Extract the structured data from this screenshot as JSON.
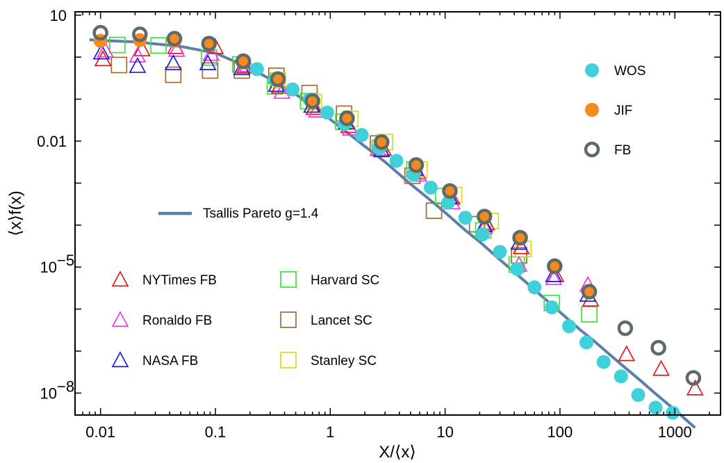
{
  "chart_data": {
    "type": "scatter",
    "xlabel": "X/⟨x⟩",
    "ylabel": "⟨x⟩f(x)",
    "xscale": "log",
    "yscale": "log",
    "xlim": [
      0.006,
      2500
    ],
    "ylim": [
      3e-09,
      12
    ],
    "x_ticks": [
      {
        "value": 0.01,
        "label": "0.01"
      },
      {
        "value": 0.1,
        "label": "0.1"
      },
      {
        "value": 1,
        "label": "1"
      },
      {
        "value": 10,
        "label": "10"
      },
      {
        "value": 100,
        "label": "100"
      },
      {
        "value": 1000,
        "label": "1000"
      }
    ],
    "y_ticks": [
      {
        "value": 10,
        "label": "10",
        "exp": ""
      },
      {
        "value": 0.01,
        "label": "0.01",
        "exp": ""
      },
      {
        "value": 1e-05,
        "label": "10",
        "exp": "−5"
      },
      {
        "value": 1e-08,
        "label": "10",
        "exp": "−8"
      }
    ],
    "curve": {
      "name": "Tsallis Pareto g=1.4",
      "color": "#5b7fad",
      "x": [
        0.008,
        0.01,
        0.02,
        0.05,
        0.1,
        0.2,
        0.3,
        0.5,
        0.7,
        1,
        1.5,
        2,
        3,
        5,
        7,
        10,
        15,
        20,
        30,
        50,
        70,
        100,
        150,
        200,
        300,
        500,
        700,
        1000,
        1500
      ],
      "y": [
        2.6,
        2.5,
        2.3,
        1.8,
        1.25,
        0.55,
        0.3,
        0.13,
        0.07,
        0.033,
        0.014,
        0.0075,
        0.0032,
        0.00095,
        0.00045,
        0.0002,
        7.5e-05,
        4e-05,
        1.5e-05,
        4.5e-06,
        2e-06,
        8.5e-07,
        3.2e-07,
        1.7e-07,
        6.5e-08,
        2e-08,
        9e-09,
        4e-09,
        1.5e-09
      ]
    },
    "series": [
      {
        "name": "WOS",
        "marker": "circle-filled",
        "color": "#3fd0da",
        "x": [
          0.23,
          0.33,
          0.47,
          0.66,
          0.94,
          1.33,
          1.88,
          2.66,
          3.77,
          5.3,
          7.5,
          10.6,
          15,
          21.2,
          30,
          42.4,
          60,
          85,
          120,
          170,
          240,
          340,
          480,
          680,
          960
        ],
        "y": [
          0.52,
          0.29,
          0.17,
          0.098,
          0.048,
          0.026,
          0.014,
          0.0068,
          0.0034,
          0.0016,
          0.00078,
          0.00034,
          0.00015,
          6e-05,
          2.3e-05,
          9e-06,
          3.3e-06,
          1.1e-06,
          3.9e-07,
          1.6e-07,
          5.5e-08,
          2.5e-08,
          9e-09,
          4.5e-09,
          3.4e-09
        ]
      },
      {
        "name": "JIF",
        "marker": "circle-filled",
        "color": "#f58a1f",
        "x": [
          0.01,
          0.022,
          0.044,
          0.088,
          0.175,
          0.35,
          0.7,
          1.4,
          2.8,
          5.6,
          11,
          22,
          45,
          90,
          180
        ],
        "y": [
          2.45,
          2.55,
          2.45,
          2.0,
          0.75,
          0.28,
          0.085,
          0.034,
          0.0088,
          0.0025,
          0.00062,
          0.00015,
          4.8e-05,
          9.9e-06,
          2.5e-06
        ]
      },
      {
        "name": "FB",
        "marker": "circle-open",
        "color": "#5d6b68",
        "x": [
          0.01,
          0.022,
          0.044,
          0.088,
          0.175,
          0.35,
          0.7,
          1.4,
          2.8,
          5.6,
          11,
          22,
          45,
          90,
          180,
          370,
          720,
          1450
        ],
        "y": [
          3.8,
          3.5,
          2.75,
          2.1,
          0.8,
          0.3,
          0.09,
          0.035,
          0.0095,
          0.0027,
          0.00065,
          0.00016,
          5e-05,
          1.05e-05,
          2.6e-06,
          3.5e-07,
          1.2e-07,
          2.3e-08
        ]
      },
      {
        "name": "NYTimes FB",
        "marker": "triangle",
        "color": "#e4181b",
        "x": [
          0.0105,
          0.023,
          0.045,
          0.1,
          0.18,
          0.36,
          0.72,
          1.45,
          2.9,
          5.8,
          11.5,
          23,
          46,
          92,
          185,
          380,
          760,
          1500
        ],
        "y": [
          0.9,
          1.55,
          1.75,
          1.75,
          0.6,
          0.2,
          0.062,
          0.023,
          0.0066,
          0.0018,
          0.00045,
          0.00011,
          3e-05,
          6.5e-06,
          1.7e-06,
          8.5e-08,
          3.8e-08,
          1.3e-08
        ]
      },
      {
        "name": "Ronaldo FB",
        "marker": "triangle",
        "color": "#ea38ea",
        "x": [
          0.011,
          0.021,
          0.046,
          0.092,
          0.19,
          0.38,
          0.76,
          1.5,
          2.6,
          5.9,
          11.5,
          22,
          44,
          88,
          175
        ],
        "y": [
          1.45,
          1.1,
          1.5,
          1.2,
          0.65,
          0.15,
          0.054,
          0.02,
          0.0065,
          0.0016,
          0.00035,
          9e-05,
          1.15e-05,
          5.5e-06,
          3.8e-06
        ]
      },
      {
        "name": "NASA FB",
        "marker": "triangle",
        "color": "#1b1bd9",
        "x": [
          0.0102,
          0.021,
          0.043,
          0.086,
          0.17,
          0.34,
          0.69,
          1.38,
          2.8,
          5.5,
          11,
          22,
          44,
          88,
          175
        ],
        "y": [
          1.3,
          0.62,
          0.72,
          0.72,
          0.55,
          0.22,
          0.07,
          0.028,
          0.0061,
          0.0022,
          0.00047,
          0.0001,
          3.8e-05,
          6.5e-06,
          2.2e-06
        ]
      },
      {
        "name": "Harvard SC",
        "marker": "square",
        "color": "#3ae33a",
        "x": [
          0.014,
          0.032,
          0.088,
          0.165,
          0.33,
          0.64,
          1.3,
          2.7,
          5.4,
          9.6,
          21.5,
          42,
          85,
          180
        ],
        "y": [
          1.95,
          1.9,
          0.98,
          0.67,
          0.2,
          0.09,
          0.029,
          0.0068,
          0.0021,
          0.00049,
          7.5e-05,
          1.15e-05,
          1.4e-06,
          7.5e-07
        ]
      },
      {
        "name": "Lancet SC",
        "marker": "square",
        "color": "#a26b34",
        "x": [
          0.0145,
          0.043,
          0.09,
          0.17,
          0.34,
          0.66,
          1.32,
          2.6,
          5.2,
          8,
          19,
          44
        ],
        "y": [
          0.65,
          0.38,
          0.48,
          0.48,
          0.36,
          0.14,
          0.045,
          0.0088,
          0.0015,
          0.00022,
          0.000105,
          1.9e-05
        ]
      },
      {
        "name": "Stanley SC",
        "marker": "square",
        "color": "#e3d61a",
        "x": [
          0.35,
          0.72,
          1.5,
          3.0,
          6.0,
          12,
          25,
          48
        ],
        "y": [
          0.28,
          0.085,
          0.034,
          0.0095,
          0.0021,
          0.00052,
          0.000125,
          2.7e-05
        ]
      }
    ],
    "legend": {
      "right": [
        "WOS",
        "JIF",
        "FB"
      ],
      "left_col1": [
        "NYTimes FB",
        "Ronaldo FB",
        "NASA FB"
      ],
      "left_col2": [
        "Harvard SC",
        "Lancet SC",
        "Stanley SC"
      ]
    }
  }
}
